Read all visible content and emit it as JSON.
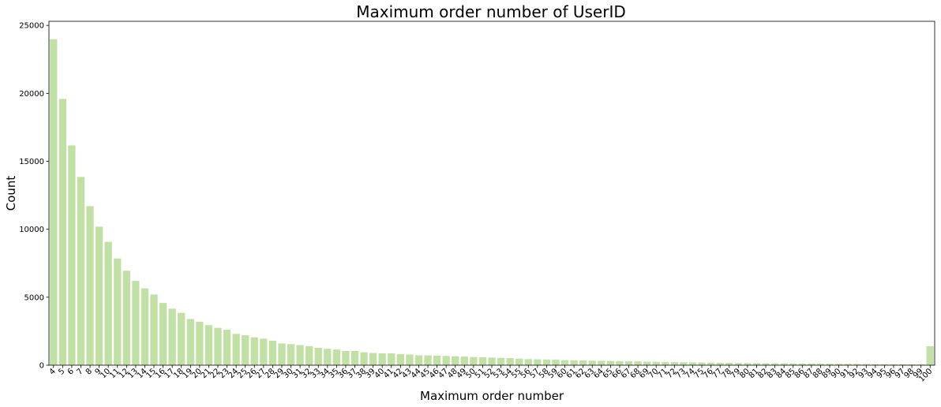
{
  "chart_data": {
    "type": "bar",
    "title": "Maximum order number of UserID",
    "xlabel": "Maximum order number",
    "ylabel": "Count",
    "ylim": [
      0,
      25300
    ],
    "yticks": [
      0,
      5000,
      10000,
      15000,
      20000,
      25000
    ],
    "grid": false,
    "bar_color": "#c0e0a4",
    "categories": [
      "4",
      "5",
      "6",
      "7",
      "8",
      "9",
      "10",
      "11",
      "12",
      "13",
      "14",
      "15",
      "16",
      "17",
      "18",
      "19",
      "20",
      "21",
      "22",
      "23",
      "24",
      "25",
      "26",
      "27",
      "28",
      "29",
      "30",
      "31",
      "32",
      "33",
      "34",
      "35",
      "36",
      "37",
      "38",
      "39",
      "40",
      "41",
      "42",
      "43",
      "44",
      "45",
      "46",
      "47",
      "48",
      "49",
      "50",
      "51",
      "52",
      "53",
      "54",
      "55",
      "56",
      "57",
      "58",
      "59",
      "60",
      "61",
      "62",
      "63",
      "64",
      "65",
      "66",
      "67",
      "68",
      "69",
      "70",
      "71",
      "72",
      "73",
      "74",
      "75",
      "76",
      "77",
      "78",
      "79",
      "80",
      "81",
      "82",
      "83",
      "84",
      "85",
      "86",
      "87",
      "88",
      "89",
      "90",
      "91",
      "92",
      "93",
      "94",
      "95",
      "96",
      "97",
      "98",
      "99",
      "100"
    ],
    "values": [
      23986,
      19590,
      16165,
      13850,
      11700,
      10190,
      9070,
      7850,
      6950,
      6200,
      5650,
      5200,
      4580,
      4160,
      3850,
      3400,
      3200,
      2950,
      2750,
      2600,
      2300,
      2200,
      2050,
      1950,
      1800,
      1600,
      1550,
      1480,
      1400,
      1280,
      1200,
      1150,
      1050,
      1050,
      950,
      900,
      870,
      870,
      820,
      780,
      730,
      720,
      700,
      680,
      660,
      630,
      600,
      580,
      560,
      540,
      520,
      480,
      450,
      430,
      420,
      400,
      370,
      360,
      350,
      330,
      320,
      310,
      300,
      290,
      280,
      260,
      250,
      240,
      230,
      220,
      210,
      200,
      190,
      180,
      170,
      160,
      155,
      150,
      145,
      140,
      135,
      130,
      120,
      115,
      110,
      105,
      100,
      95,
      90,
      85,
      80,
      75,
      70,
      65,
      60,
      60,
      1400
    ]
  }
}
